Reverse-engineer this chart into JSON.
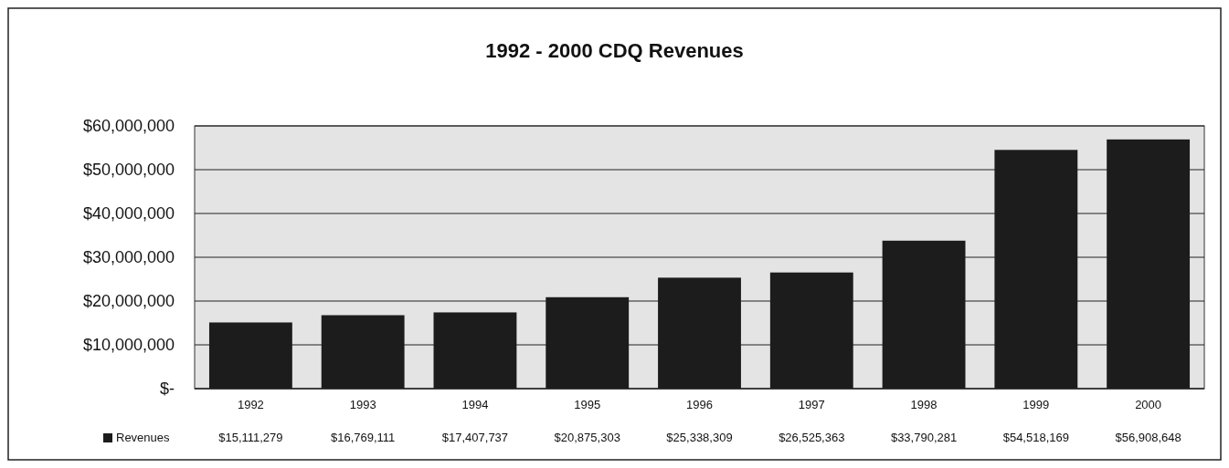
{
  "chart_data": {
    "type": "bar",
    "title": "1992 - 2000 CDQ Revenues",
    "categories": [
      "1992",
      "1993",
      "1994",
      "1995",
      "1996",
      "1997",
      "1998",
      "1999",
      "2000"
    ],
    "series": [
      {
        "name": "Revenues",
        "color": "#1c1c1c",
        "values": [
          15111279,
          16769111,
          17407737,
          20875303,
          25338309,
          26525363,
          33790281,
          54518169,
          56908648
        ],
        "value_labels": [
          "$15,111,279",
          "$16,769,111",
          "$17,407,737",
          "$20,875,303",
          "$25,338,309",
          "$26,525,363",
          "$33,790,281",
          "$54,518,169",
          "$56,908,648"
        ]
      }
    ],
    "ylim": [
      0,
      60000000
    ],
    "yticks": [
      {
        "value": 0,
        "label": "$-"
      },
      {
        "value": 10000000,
        "label": "$10,000,000"
      },
      {
        "value": 20000000,
        "label": "$20,000,000"
      },
      {
        "value": 30000000,
        "label": "$30,000,000"
      },
      {
        "value": 40000000,
        "label": "$40,000,000"
      },
      {
        "value": 50000000,
        "label": "$50,000,000"
      },
      {
        "value": 60000000,
        "label": "$60,000,000"
      }
    ],
    "grid": "y",
    "legend": "bottom"
  }
}
